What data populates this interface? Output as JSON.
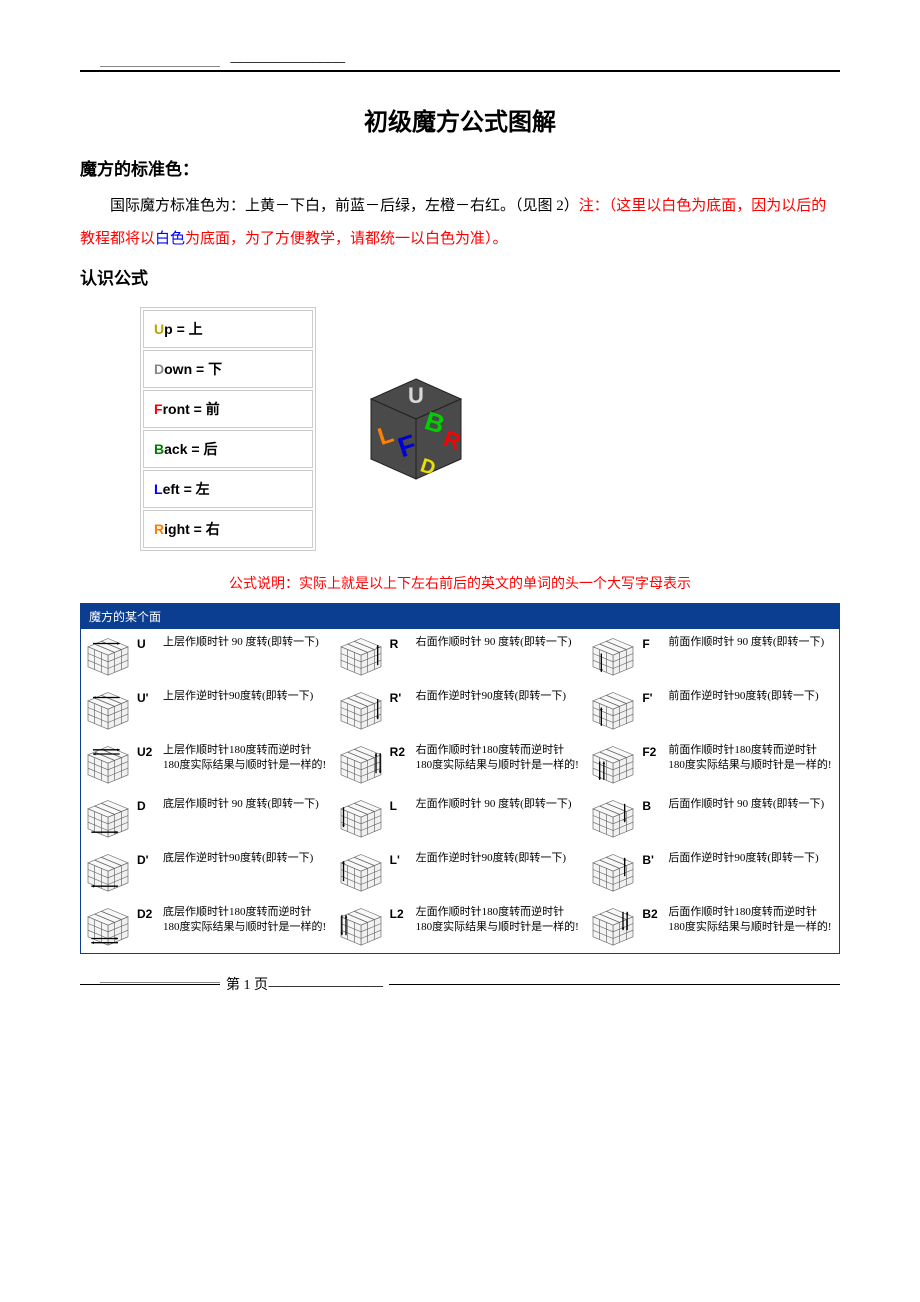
{
  "top_dashes": "-------------------------------------------",
  "title": "初级魔方公式图解",
  "section1_heading": "魔方的标准色：",
  "para1_part1": "国际魔方标准色为：上黄－下白，前蓝－后绿，左橙－右红。（见图 2）",
  "para1_note_label": "注：（这里以白色为底面，因为以后的教程都将以",
  "para1_white": "白色",
  "para1_note_tail": "为底面，为了方便教学，请都统一以白色为准）。",
  "section2_heading": "认识公式",
  "notation": [
    {
      "letter": "U",
      "rest": "p = 上",
      "color": "#c0a000"
    },
    {
      "letter": "D",
      "rest": "own = 下",
      "color": "#888888"
    },
    {
      "letter": "F",
      "rest": "ront = 前",
      "color": "#ff0000"
    },
    {
      "letter": "B",
      "rest": "ack = 后",
      "color": "#008000"
    },
    {
      "letter": "L",
      "rest": "eft = 左",
      "color": "#0000ff"
    },
    {
      "letter": "R",
      "rest": "ight = 右",
      "color": "#ff8000"
    }
  ],
  "cube_faces": {
    "body_fill": "#4a4a4a",
    "U": {
      "text": "U",
      "color": "#d8d8d8"
    },
    "L": {
      "text": "L",
      "color": "#ff8000"
    },
    "F": {
      "text": "F",
      "color": "#0000d0"
    },
    "B": {
      "text": "B",
      "color": "#00d000"
    },
    "R": {
      "text": "R",
      "color": "#ff0000"
    },
    "D": {
      "text": "D",
      "color": "#e8e000"
    }
  },
  "explain": "公式说明：实际上就是以上下左右前后的英文的单词的头一个大写字母表示",
  "moves_header": "魔方的某个面",
  "desc_cw90": "作顺时针 90 度转(即转一下)",
  "desc_ccw90": "作逆时针90度转(即转一下)",
  "desc_180": "作顺时针180度转而逆时针180度实际结果与顺时针是一样的!",
  "moves": {
    "col1": [
      {
        "label": "U",
        "face": "上层",
        "type": "cw90",
        "arrow": "top-cw"
      },
      {
        "label": "U'",
        "face": "上层",
        "type": "ccw90",
        "arrow": "top-ccw"
      },
      {
        "label": "U2",
        "face": "上层",
        "type": "180",
        "arrow": "top-180"
      },
      {
        "label": "D",
        "face": "底层",
        "type": "cw90",
        "arrow": "bot-cw"
      },
      {
        "label": "D'",
        "face": "底层",
        "type": "ccw90",
        "arrow": "bot-ccw"
      },
      {
        "label": "D2",
        "face": "底层",
        "type": "180",
        "arrow": "bot-180"
      }
    ],
    "col2": [
      {
        "label": "R",
        "face": "右面",
        "type": "cw90",
        "arrow": "right-cw"
      },
      {
        "label": "R'",
        "face": "右面",
        "type": "ccw90",
        "arrow": "right-ccw"
      },
      {
        "label": "R2",
        "face": "右面",
        "type": "180",
        "arrow": "right-180"
      },
      {
        "label": "L",
        "face": "左面",
        "type": "cw90",
        "arrow": "left-cw"
      },
      {
        "label": "L'",
        "face": "左面",
        "type": "ccw90",
        "arrow": "left-ccw"
      },
      {
        "label": "L2",
        "face": "左面",
        "type": "180",
        "arrow": "left-180"
      }
    ],
    "col3": [
      {
        "label": "F",
        "face": "前面",
        "type": "cw90",
        "arrow": "front-cw"
      },
      {
        "label": "F'",
        "face": "前面",
        "type": "ccw90",
        "arrow": "front-ccw"
      },
      {
        "label": "F2",
        "face": "前面",
        "type": "180",
        "arrow": "front-180"
      },
      {
        "label": "B",
        "face": "后面",
        "type": "cw90",
        "arrow": "back-cw"
      },
      {
        "label": "B'",
        "face": "后面",
        "type": "ccw90",
        "arrow": "back-ccw"
      },
      {
        "label": "B2",
        "face": "后面",
        "type": "180",
        "arrow": "back-180"
      }
    ]
  },
  "footer_page": "第 1 页",
  "footer_dashes": "-------------------------------------------"
}
